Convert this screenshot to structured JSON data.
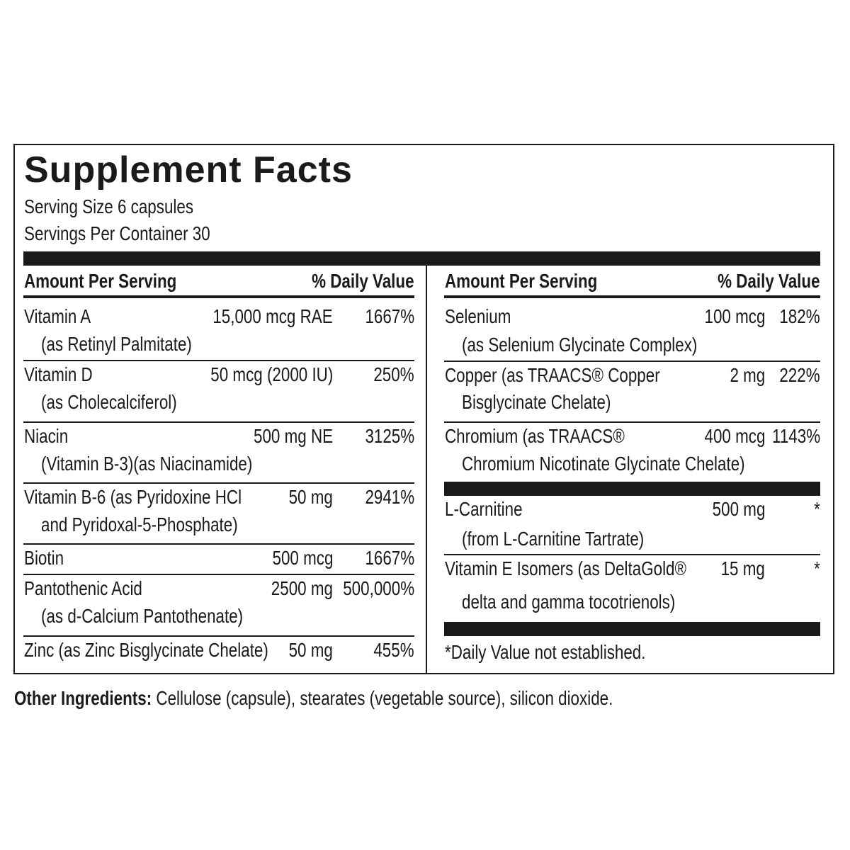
{
  "title": "Supplement Facts",
  "serving_size": "Serving Size 6 capsules",
  "servings_per_container": "Servings Per Container 30",
  "left": {
    "header": {
      "amount": "Amount Per Serving",
      "dv": "% Daily Value"
    },
    "rows": [
      {
        "name": [
          "Vitamin A",
          "(as Retinyl Palmitate)"
        ],
        "amount": "15,000 mcg RAE",
        "dv": "1667%"
      },
      {
        "name": [
          "Vitamin D",
          "(as Cholecalciferol)"
        ],
        "amount": "50 mcg (2000 IU)",
        "dv": "250%"
      },
      {
        "name": [
          "Niacin",
          "(Vitamin B-3)(as Niacinamide)"
        ],
        "amount": "500 mg NE",
        "dv": "3125%"
      },
      {
        "name": [
          "Vitamin B-6 (as Pyridoxine HCl",
          "and Pyridoxal-5-Phosphate)"
        ],
        "amount": "50 mg",
        "dv": "2941%"
      },
      {
        "name": [
          "Biotin"
        ],
        "amount": "500 mcg",
        "dv": "1667%"
      },
      {
        "name": [
          "Pantothenic Acid",
          "(as d-Calcium Pantothenate)"
        ],
        "amount": "2500 mg",
        "dv": "500,000%"
      },
      {
        "name": [
          "Zinc (as Zinc Bisglycinate Chelate)"
        ],
        "amount": "50 mg",
        "dv": "455%"
      }
    ]
  },
  "right": {
    "header": {
      "amount": "Amount Per Serving",
      "dv": "% Daily Value"
    },
    "rows": [
      {
        "name": [
          "Selenium",
          "(as Selenium Glycinate Complex)"
        ],
        "amount": "100 mcg",
        "dv": "182%"
      },
      {
        "name": [
          "Copper (as TRAACS® Copper",
          "Bisglycinate Chelate)"
        ],
        "amount": "2 mg",
        "dv": "222%"
      },
      {
        "name": [
          "Chromium (as TRAACS®",
          "Chromium Nicotinate Glycinate Chelate)"
        ],
        "amount": "400 mcg",
        "dv": "1143%"
      },
      {
        "name": [
          "L-Carnitine",
          "(from L-Carnitine Tartrate)"
        ],
        "amount": "500 mg",
        "dv": "*"
      },
      {
        "name": [
          "Vitamin E Isomers (as DeltaGold®",
          "delta and gamma tocotrienols)"
        ],
        "amount": "15 mg",
        "dv": "*"
      }
    ],
    "footnote": "*Daily Value not established."
  },
  "other_ingredients": {
    "label": "Other Ingredients:",
    "text": "Cellulose (capsule), stearates (vegetable source), silicon dioxide."
  }
}
